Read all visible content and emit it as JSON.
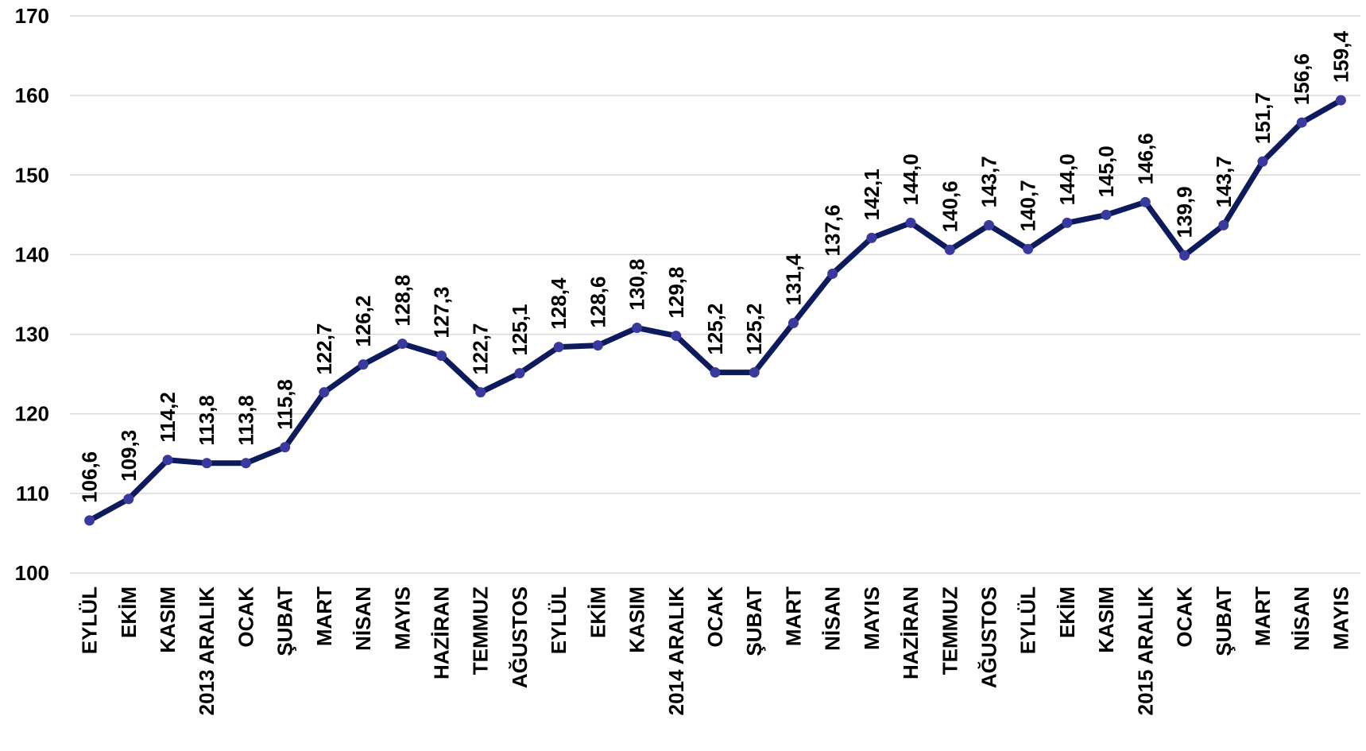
{
  "chart_data": {
    "type": "line",
    "title": "",
    "xlabel": "",
    "ylabel": "",
    "ylim": [
      100,
      170
    ],
    "yticks": [
      100,
      110,
      120,
      130,
      140,
      150,
      160,
      170
    ],
    "grid": true,
    "legend": "none",
    "line_color": "#0d1a5c",
    "marker_color": "#3a3a9e",
    "categories": [
      "EYLÜL",
      "EKİM",
      "KASIM",
      "2013 ARALIK",
      "OCAK",
      "ŞUBAT",
      "MART",
      "NİSAN",
      "MAYIS",
      "HAZİRAN",
      "TEMMUZ",
      "AĞUSTOS",
      "EYLÜL",
      "EKİM",
      "KASIM",
      "2014 ARALIK",
      "OCAK",
      "ŞUBAT",
      "MART",
      "NİSAN",
      "MAYIS",
      "HAZİRAN",
      "TEMMUZ",
      "AĞUSTOS",
      "EYLÜL",
      "EKİM",
      "KASIM",
      "2015 ARALIK",
      "OCAK",
      "ŞUBAT",
      "MART",
      "NİSAN",
      "MAYIS"
    ],
    "values": [
      106.6,
      109.3,
      114.2,
      113.8,
      113.8,
      115.8,
      122.7,
      126.2,
      128.8,
      127.3,
      122.7,
      125.1,
      128.4,
      128.6,
      130.8,
      129.8,
      125.2,
      125.2,
      131.4,
      137.6,
      142.1,
      144.0,
      140.6,
      143.7,
      140.7,
      144.0,
      145.0,
      146.6,
      139.9,
      143.7,
      151.7,
      156.6,
      159.4
    ],
    "data_labels": [
      "106,6",
      "109,3",
      "114,2",
      "113,8",
      "113,8",
      "115,8",
      "122,7",
      "126,2",
      "128,8",
      "127,3",
      "122,7",
      "125,1",
      "128,4",
      "128,6",
      "130,8",
      "129,8",
      "125,2",
      "125,2",
      "131,4",
      "137,6",
      "142,1",
      "144,0",
      "140,6",
      "143,7",
      "140,7",
      "144,0",
      "145,0",
      "146,6",
      "139,9",
      "143,7",
      "151,7",
      "156,6",
      "159,4"
    ]
  }
}
